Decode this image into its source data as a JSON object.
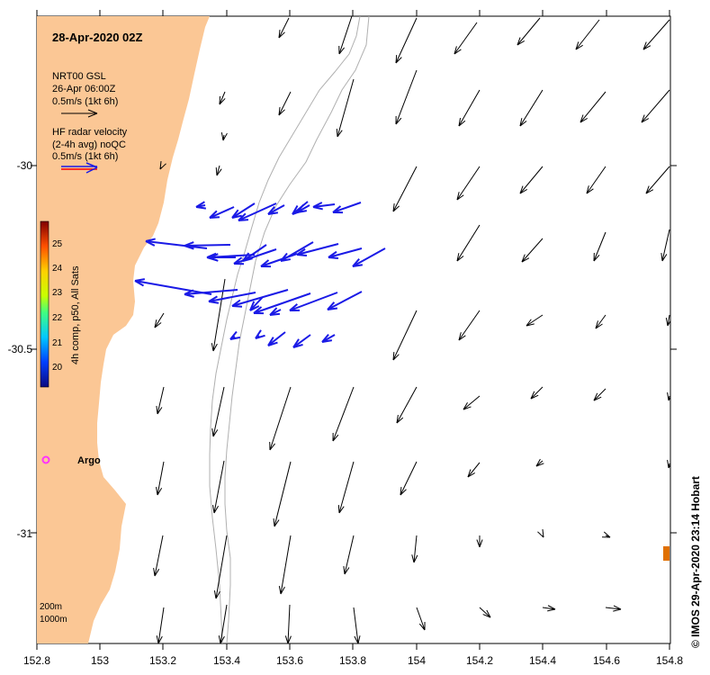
{
  "map": {
    "date_title": "28-Apr-2020 02Z",
    "lon_ticks": [
      "152.8",
      "153",
      "153.2",
      "153.4",
      "153.6",
      "153.8",
      "154",
      "154.2",
      "154.4",
      "154.6",
      "154.8"
    ],
    "lat_ticks": [
      "-30",
      "-30.5",
      "-31"
    ],
    "legend_gsl": {
      "line1": "NRT00 GSL",
      "line2": "26-Apr 06:00Z",
      "line3": "0.5m/s (1kt 6h)"
    },
    "legend_radar": {
      "line1": "HF radar velocity",
      "line2": "(2-4h avg) noQC",
      "line3": "0.5m/s (1kt 6h)"
    },
    "colorbar": {
      "label": "4h comp, p50, All Sats",
      "ticks": [
        "25",
        "24",
        "23",
        "22",
        "21",
        "20"
      ]
    },
    "argo_label": "Argo",
    "depth_200": "200m",
    "depth_1000": "1000m",
    "credit": "© IMOS 29-Apr-2020 23:14 Hobart",
    "colors": {
      "land": "#fbc795",
      "radar_arrow": "#1a1ae6",
      "argo_marker": "#ff33ff",
      "sst_marker": "#e07000"
    }
  }
}
